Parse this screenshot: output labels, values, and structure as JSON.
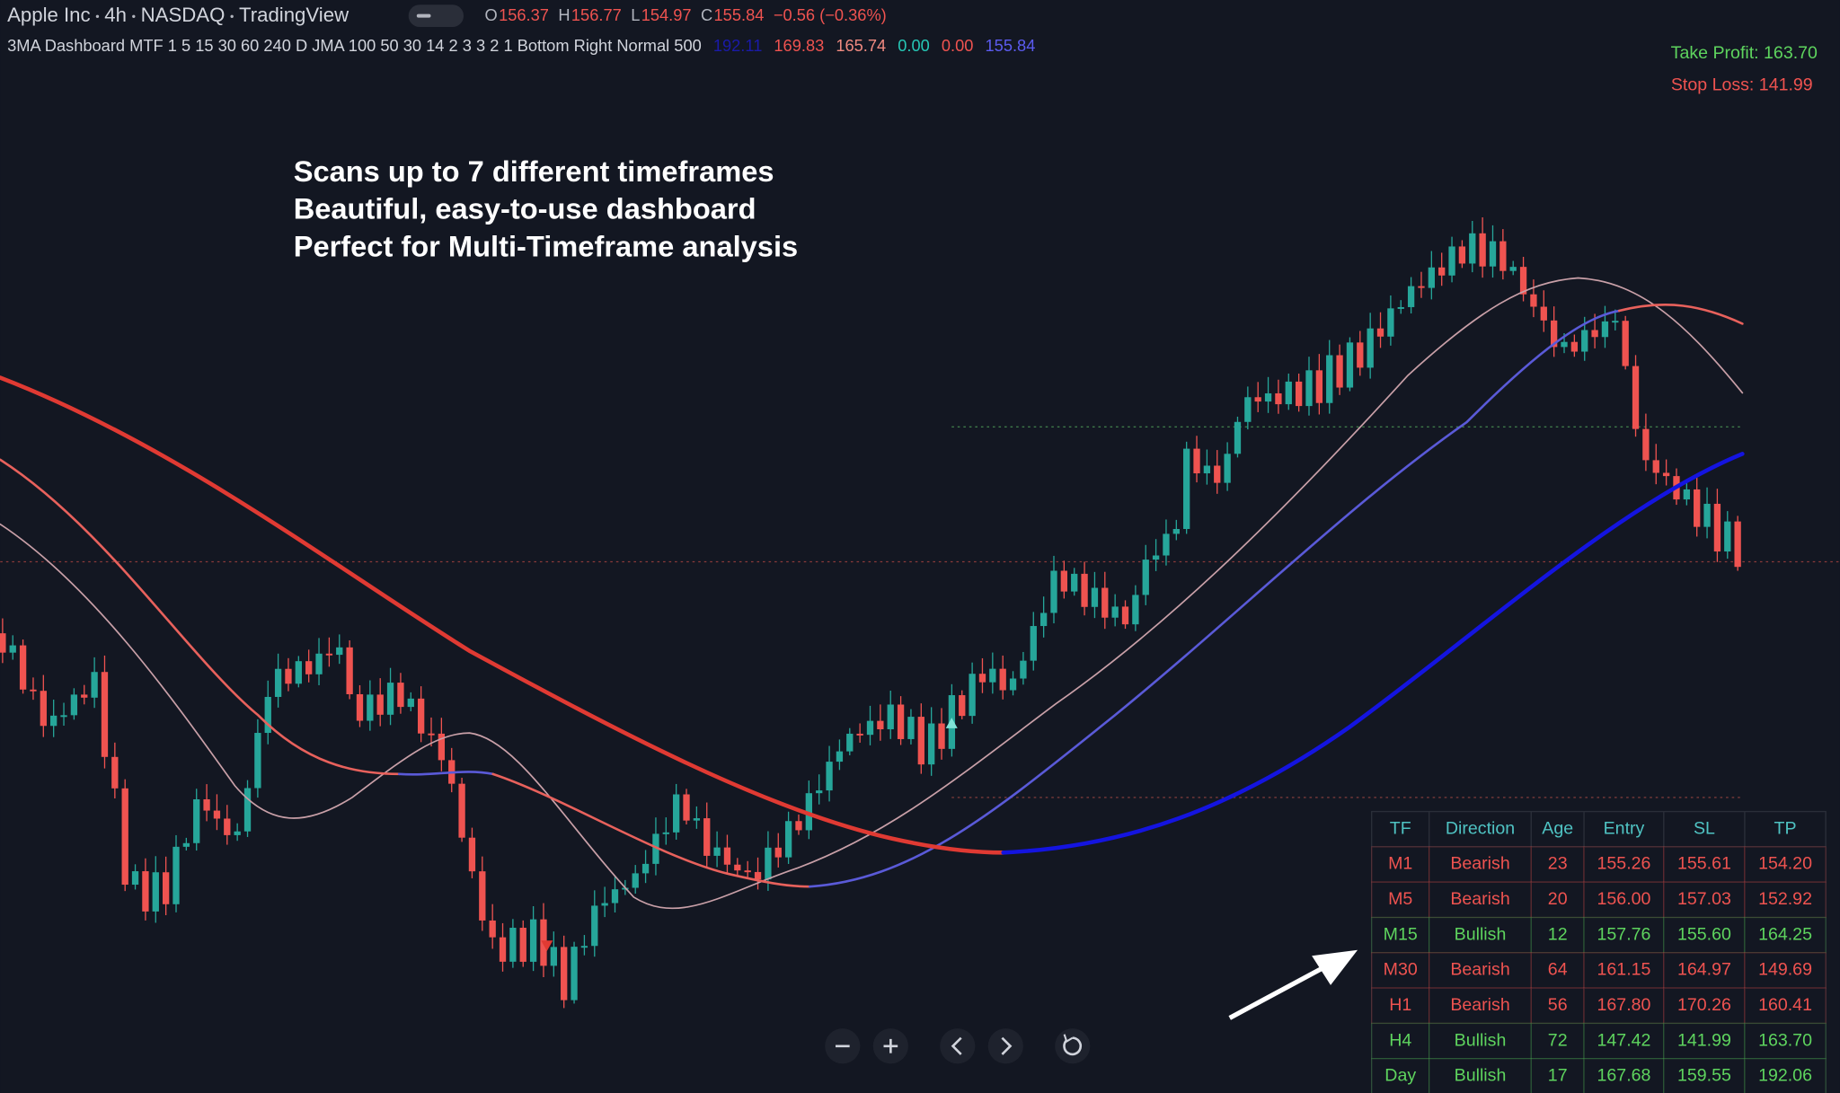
{
  "header": {
    "symbol": "Apple Inc",
    "interval": "4h",
    "exchange": "NASDAQ",
    "source": "TradingView",
    "ohlc": [
      {
        "label": "O",
        "value": "156.37"
      },
      {
        "label": "H",
        "value": "156.77"
      },
      {
        "label": "L",
        "value": "154.97"
      },
      {
        "label": "C",
        "value": "155.84"
      }
    ],
    "change": "−0.56 (−0.36%)"
  },
  "indicator": {
    "name": "3MA Dashboard MTF 1 5 15 30 60 240 D JMA 100 50 30 14 2 3 3 2 1 Bottom Right Normal 500",
    "values": [
      {
        "text": "192.11",
        "color": "#1a1aa8"
      },
      {
        "text": "169.83",
        "color": "#ef5350"
      },
      {
        "text": "165.74",
        "color": "#f08a80"
      },
      {
        "text": "0.00",
        "color": "#26c6b5"
      },
      {
        "text": "0.00",
        "color": "#ef5350"
      },
      {
        "text": "155.84",
        "color": "#5b5bef"
      }
    ]
  },
  "take_profit": "Take Profit: 163.70",
  "stop_loss": "Stop Loss: 141.99",
  "annotations": [
    "Scans up to 7 different timeframes",
    "Beautiful, easy-to-use dashboard",
    "Perfect for Multi-Timeframe analysis"
  ],
  "table": {
    "headers": [
      "TF",
      "Direction",
      "Age",
      "Entry",
      "SL",
      "TP"
    ],
    "rows": [
      {
        "cells": [
          "M1",
          "Bearish",
          "23",
          "155.26",
          "155.61",
          "154.20"
        ],
        "color": "#ef5350"
      },
      {
        "cells": [
          "M5",
          "Bearish",
          "20",
          "156.00",
          "157.03",
          "152.92"
        ],
        "color": "#ef5350"
      },
      {
        "cells": [
          "M15",
          "Bullish",
          "12",
          "157.76",
          "155.60",
          "164.25"
        ],
        "color": "#5ed45e"
      },
      {
        "cells": [
          "M30",
          "Bearish",
          "64",
          "161.15",
          "164.97",
          "149.69"
        ],
        "color": "#ef5350"
      },
      {
        "cells": [
          "H1",
          "Bearish",
          "56",
          "167.80",
          "170.26",
          "160.41"
        ],
        "color": "#ef5350"
      },
      {
        "cells": [
          "H4",
          "Bullish",
          "72",
          "147.42",
          "141.99",
          "163.70"
        ],
        "color": "#5ed45e"
      },
      {
        "cells": [
          "Day",
          "Bullish",
          "17",
          "167.68",
          "159.55",
          "192.06"
        ],
        "color": "#5ed45e"
      }
    ]
  }
}
